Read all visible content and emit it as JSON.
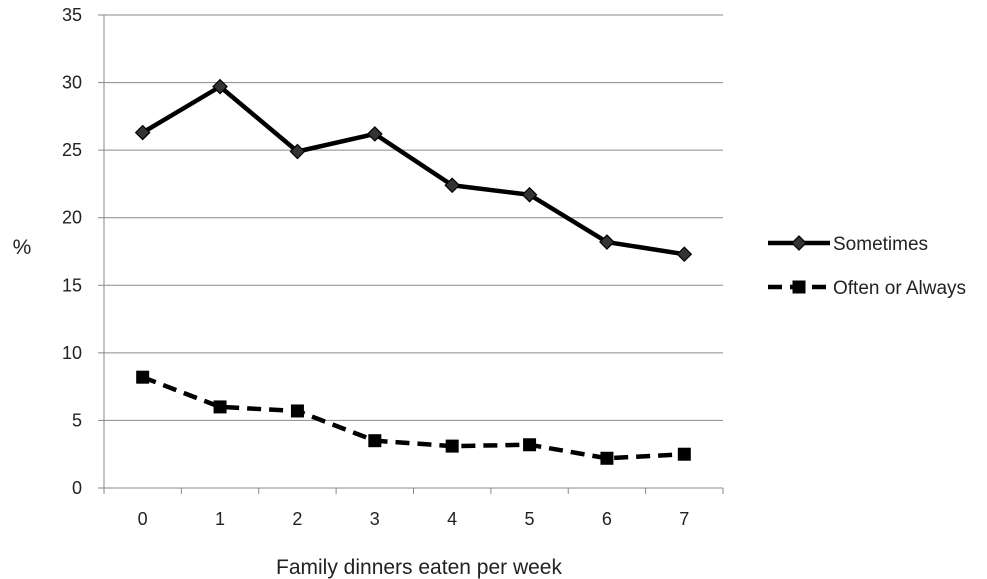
{
  "chart_data": {
    "type": "line",
    "title": "",
    "xlabel": "Family dinners eaten per week",
    "ylabel": "%",
    "categories": [
      "0",
      "1",
      "2",
      "3",
      "4",
      "5",
      "6",
      "7"
    ],
    "ylim": [
      0,
      35
    ],
    "yticks": [
      0,
      5,
      10,
      15,
      20,
      25,
      30,
      35
    ],
    "grid": true,
    "legend_position": "right",
    "series": [
      {
        "name": "Sometimes",
        "values": [
          26.3,
          29.7,
          24.9,
          26.2,
          22.4,
          21.7,
          18.2,
          17.3
        ],
        "line_style": "solid",
        "marker": "diamond",
        "color": "#000000"
      },
      {
        "name": "Often or Always",
        "values": [
          8.2,
          6.0,
          5.7,
          3.5,
          3.1,
          3.2,
          2.2,
          2.5
        ],
        "line_style": "dashed",
        "marker": "square",
        "color": "#000000"
      }
    ]
  }
}
